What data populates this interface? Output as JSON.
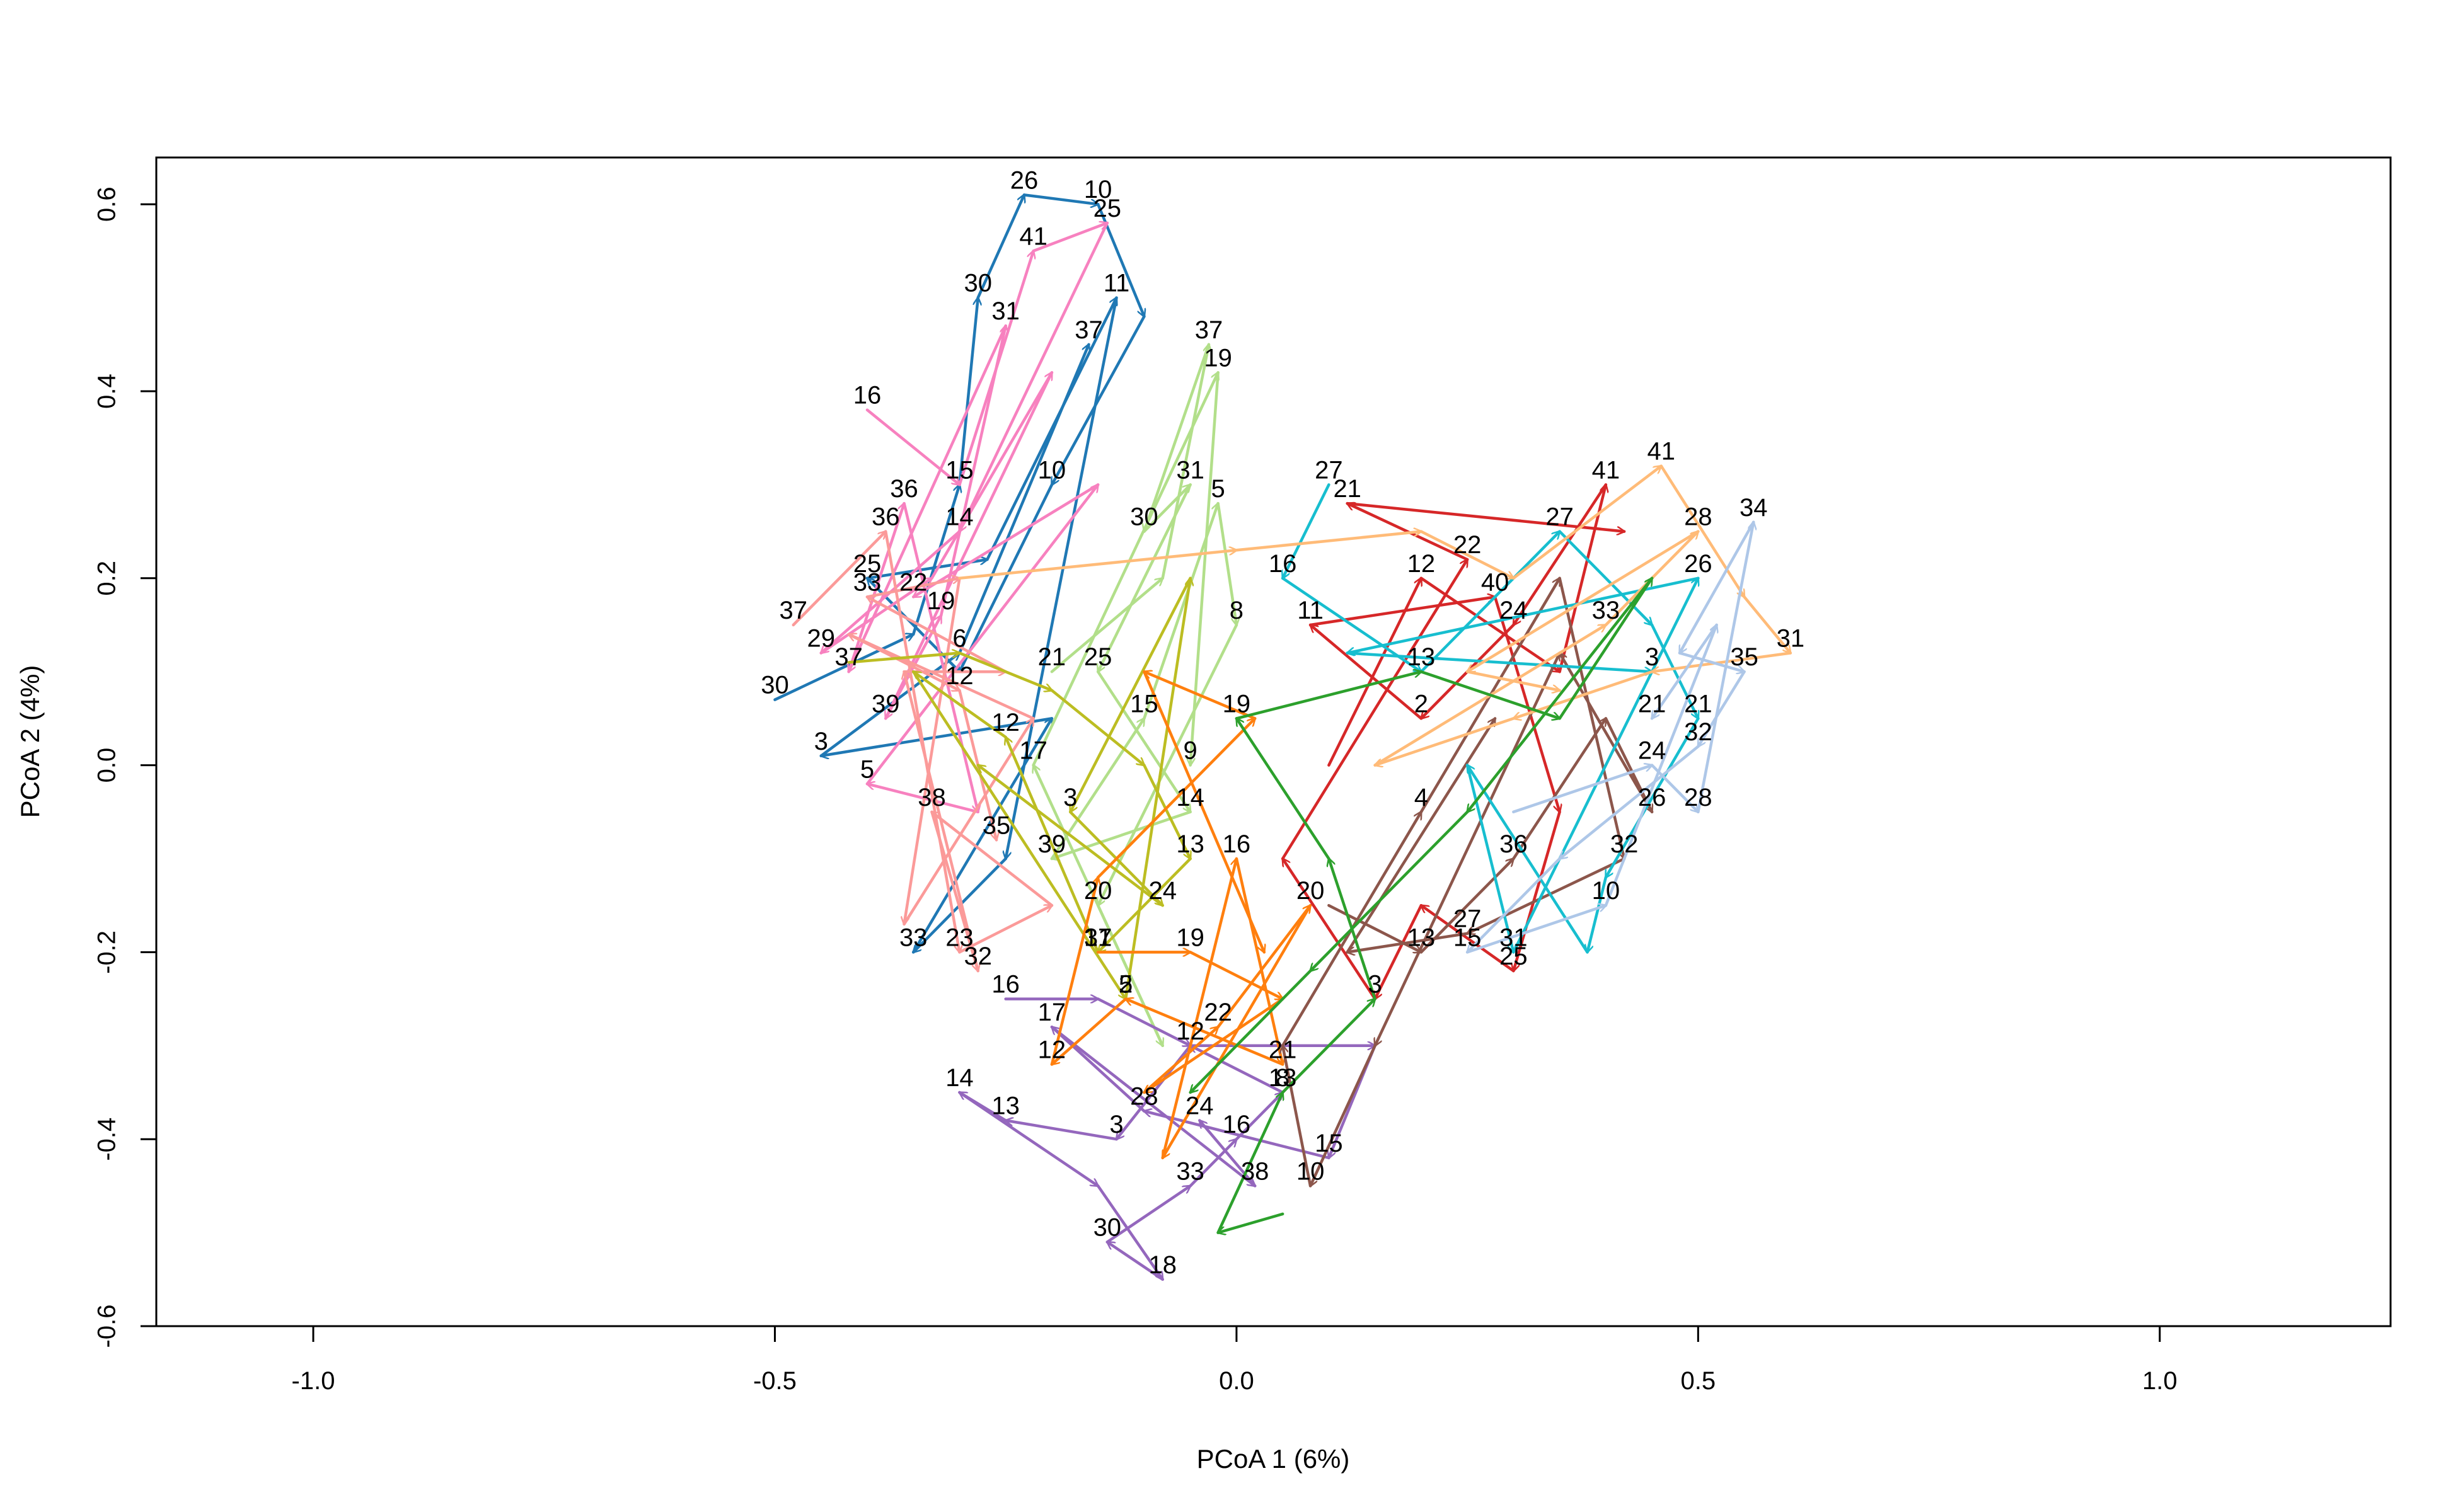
{
  "chart_data": {
    "type": "line",
    "xlabel": "PCoA 1 (6%)",
    "ylabel": "PCoA 2 (4%)",
    "xlim": [
      -1.17,
      1.25
    ],
    "ylim": [
      -0.6,
      0.65
    ],
    "xticks": [
      -1.0,
      -0.5,
      0.0,
      0.5,
      1.0
    ],
    "xtick_labels": [
      "-1.0",
      "-0.5",
      "0.0",
      "0.5",
      "1.0"
    ],
    "yticks": [
      -0.6,
      -0.4,
      -0.2,
      0.0,
      0.2,
      0.4,
      0.6
    ],
    "ytick_labels": [
      "-0.6",
      "-0.4",
      "-0.2",
      "0.0",
      "0.2",
      "0.4",
      "0.6"
    ],
    "grid": false,
    "legend": "none",
    "arrows": true,
    "series": [
      {
        "color": "#1f78b4",
        "points": [
          [
            -0.5,
            0.07,
            "30"
          ],
          [
            -0.35,
            0.14,
            ""
          ],
          [
            -0.3,
            0.3,
            ""
          ],
          [
            -0.28,
            0.5,
            "30"
          ],
          [
            -0.23,
            0.61,
            "26"
          ],
          [
            -0.15,
            0.6,
            "10"
          ],
          [
            -0.1,
            0.48,
            ""
          ],
          [
            -0.2,
            0.3,
            "10"
          ],
          [
            -0.3,
            0.1,
            ""
          ],
          [
            -0.4,
            0.2,
            "25"
          ],
          [
            -0.27,
            0.22,
            ""
          ],
          [
            -0.13,
            0.5,
            "11"
          ],
          [
            -0.25,
            -0.1,
            ""
          ],
          [
            -0.35,
            -0.2,
            "33"
          ],
          [
            -0.2,
            0.05,
            ""
          ],
          [
            -0.45,
            0.01,
            "3"
          ],
          [
            -0.3,
            0.12,
            ""
          ],
          [
            -0.16,
            0.45,
            "37"
          ]
        ]
      },
      {
        "color": "#f781bf",
        "points": [
          [
            -0.4,
            0.38,
            "16"
          ],
          [
            -0.3,
            0.3,
            "15"
          ],
          [
            -0.22,
            0.55,
            "41"
          ],
          [
            -0.14,
            0.58,
            "25"
          ],
          [
            -0.3,
            0.25,
            "14"
          ],
          [
            -0.45,
            0.12,
            "29"
          ],
          [
            -0.33,
            0.2,
            ""
          ],
          [
            -0.2,
            0.42,
            ""
          ],
          [
            -0.38,
            0.05,
            "39"
          ],
          [
            -0.32,
            0.16,
            "19"
          ],
          [
            -0.25,
            0.47,
            "31"
          ],
          [
            -0.42,
            0.1,
            "37"
          ],
          [
            -0.36,
            0.28,
            "36"
          ],
          [
            -0.28,
            -0.05,
            ""
          ],
          [
            -0.4,
            -0.02,
            "5"
          ],
          [
            -0.15,
            0.3,
            ""
          ],
          [
            -0.35,
            0.18,
            "22"
          ]
        ]
      },
      {
        "color": "#fb9a99",
        "points": [
          [
            -0.48,
            0.15,
            "37"
          ],
          [
            -0.38,
            0.25,
            "36"
          ],
          [
            -0.3,
            -0.2,
            "23"
          ],
          [
            -0.2,
            -0.15,
            ""
          ],
          [
            -0.33,
            -0.05,
            "38"
          ],
          [
            -0.28,
            -0.22,
            "32"
          ],
          [
            -0.36,
            0.1,
            ""
          ],
          [
            -0.25,
            0.1,
            ""
          ],
          [
            -0.4,
            0.18,
            "33"
          ],
          [
            -0.3,
            0.2,
            ""
          ],
          [
            -0.36,
            -0.17,
            ""
          ],
          [
            -0.22,
            0.05,
            ""
          ],
          [
            -0.42,
            0.14,
            ""
          ],
          [
            -0.3,
            0.08,
            "12"
          ],
          [
            -0.26,
            -0.08,
            "35"
          ]
        ]
      },
      {
        "color": "#b2df8a",
        "points": [
          [
            -0.2,
            0.1,
            "21"
          ],
          [
            -0.08,
            0.2,
            ""
          ],
          [
            -0.03,
            0.45,
            "37"
          ],
          [
            -0.1,
            0.25,
            "30"
          ],
          [
            -0.05,
            0.3,
            "31"
          ],
          [
            -0.15,
            0.1,
            "25"
          ],
          [
            -0.05,
            -0.05,
            "14"
          ],
          [
            -0.2,
            -0.1,
            "39"
          ],
          [
            -0.1,
            0.05,
            "15"
          ],
          [
            -0.02,
            0.28,
            "5"
          ],
          [
            0.0,
            0.15,
            "8"
          ],
          [
            -0.15,
            -0.15,
            "20"
          ],
          [
            -0.08,
            -0.3,
            ""
          ],
          [
            -0.22,
            0.0,
            "17"
          ],
          [
            -0.02,
            0.42,
            "19"
          ],
          [
            -0.05,
            0.0,
            "9"
          ]
        ]
      },
      {
        "color": "#bcbd22",
        "points": [
          [
            -0.42,
            0.11,
            ""
          ],
          [
            -0.3,
            0.12,
            "6"
          ],
          [
            -0.2,
            0.08,
            ""
          ],
          [
            -0.1,
            0.0,
            ""
          ],
          [
            -0.05,
            -0.1,
            "13"
          ],
          [
            -0.15,
            -0.2,
            "31"
          ],
          [
            -0.25,
            0.03,
            "12"
          ],
          [
            -0.35,
            0.1,
            ""
          ],
          [
            -0.12,
            -0.25,
            "2"
          ],
          [
            -0.05,
            0.2,
            ""
          ],
          [
            -0.18,
            -0.05,
            "3"
          ],
          [
            -0.08,
            -0.15,
            "24"
          ],
          [
            -0.28,
            0.0,
            ""
          ]
        ]
      },
      {
        "color": "#9467bd",
        "points": [
          [
            -0.25,
            -0.25,
            "16"
          ],
          [
            -0.15,
            -0.25,
            ""
          ],
          [
            -0.05,
            -0.3,
            ""
          ],
          [
            -0.13,
            -0.4,
            "3"
          ],
          [
            -0.25,
            -0.38,
            "13"
          ],
          [
            -0.3,
            -0.35,
            "14"
          ],
          [
            -0.15,
            -0.45,
            ""
          ],
          [
            -0.08,
            -0.55,
            "18"
          ],
          [
            -0.14,
            -0.51,
            "30"
          ],
          [
            -0.05,
            -0.45,
            "33"
          ],
          [
            0.0,
            -0.4,
            "16"
          ],
          [
            0.05,
            -0.35,
            "13"
          ],
          [
            -0.05,
            -0.3,
            "12"
          ],
          [
            0.15,
            -0.3,
            ""
          ],
          [
            0.1,
            -0.42,
            "15"
          ],
          [
            -0.1,
            -0.37,
            "28"
          ],
          [
            -0.2,
            -0.28,
            "17"
          ],
          [
            0.02,
            -0.45,
            "38"
          ],
          [
            -0.04,
            -0.38,
            "24"
          ]
        ]
      },
      {
        "color": "#ff7f0e",
        "points": [
          [
            -0.15,
            -0.2,
            "17"
          ],
          [
            -0.05,
            -0.2,
            "19"
          ],
          [
            0.05,
            -0.25,
            ""
          ],
          [
            -0.1,
            -0.35,
            ""
          ],
          [
            -0.02,
            -0.28,
            "22"
          ],
          [
            0.08,
            -0.15,
            "20"
          ],
          [
            -0.08,
            -0.42,
            ""
          ],
          [
            0.0,
            -0.1,
            "16"
          ],
          [
            0.05,
            -0.32,
            "21"
          ],
          [
            -0.12,
            -0.25,
            "5"
          ],
          [
            -0.2,
            -0.32,
            "12"
          ],
          [
            -0.15,
            -0.12,
            ""
          ],
          [
            0.02,
            0.05,
            ""
          ],
          [
            -0.1,
            0.1,
            ""
          ],
          [
            0.03,
            -0.2,
            ""
          ]
        ]
      },
      {
        "color": "#d62728",
        "points": [
          [
            0.1,
            0.0,
            ""
          ],
          [
            0.2,
            0.2,
            "12"
          ],
          [
            0.35,
            0.1,
            ""
          ],
          [
            0.4,
            0.3,
            "41"
          ],
          [
            0.3,
            0.15,
            "24"
          ],
          [
            0.2,
            0.05,
            "2"
          ],
          [
            0.08,
            0.15,
            "11"
          ],
          [
            0.28,
            0.18,
            "40"
          ],
          [
            0.35,
            -0.05,
            ""
          ],
          [
            0.3,
            -0.22,
            "25"
          ],
          [
            0.2,
            -0.15,
            ""
          ],
          [
            0.15,
            -0.25,
            "3"
          ],
          [
            0.05,
            -0.1,
            ""
          ],
          [
            0.25,
            0.22,
            "22"
          ],
          [
            0.12,
            0.28,
            "21"
          ],
          [
            0.42,
            0.25,
            ""
          ]
        ]
      },
      {
        "color": "#8c564b",
        "points": [
          [
            0.1,
            -0.15,
            ""
          ],
          [
            0.2,
            -0.2,
            "13"
          ],
          [
            0.3,
            -0.1,
            "36"
          ],
          [
            0.4,
            0.05,
            ""
          ],
          [
            0.45,
            -0.05,
            "26"
          ],
          [
            0.35,
            0.12,
            ""
          ],
          [
            0.15,
            -0.3,
            ""
          ],
          [
            0.08,
            -0.45,
            "10"
          ],
          [
            0.05,
            -0.3,
            ""
          ],
          [
            0.2,
            -0.05,
            "4"
          ],
          [
            0.35,
            0.2,
            ""
          ],
          [
            0.42,
            -0.1,
            "32"
          ],
          [
            0.25,
            -0.18,
            "27"
          ],
          [
            0.12,
            -0.2,
            ""
          ],
          [
            0.28,
            0.05,
            ""
          ]
        ]
      },
      {
        "color": "#17becf",
        "points": [
          [
            0.1,
            0.3,
            "27"
          ],
          [
            0.05,
            0.2,
            "16"
          ],
          [
            0.2,
            0.1,
            "13"
          ],
          [
            0.35,
            0.25,
            "27"
          ],
          [
            0.45,
            0.15,
            ""
          ],
          [
            0.5,
            0.05,
            "21"
          ],
          [
            0.4,
            -0.12,
            ""
          ],
          [
            0.38,
            -0.2,
            ""
          ],
          [
            0.25,
            0.0,
            ""
          ],
          [
            0.3,
            -0.2,
            "31"
          ],
          [
            0.5,
            0.2,
            "26"
          ],
          [
            0.12,
            0.12,
            ""
          ],
          [
            0.45,
            0.1,
            "3"
          ]
        ]
      },
      {
        "color": "#ffbb78",
        "points": [
          [
            -0.3,
            0.2,
            ""
          ],
          [
            0.0,
            0.23,
            ""
          ],
          [
            0.2,
            0.25,
            ""
          ],
          [
            0.3,
            0.2,
            ""
          ],
          [
            0.46,
            0.32,
            "41"
          ],
          [
            0.55,
            0.18,
            ""
          ],
          [
            0.6,
            0.12,
            "31"
          ],
          [
            0.45,
            0.1,
            ""
          ],
          [
            0.3,
            0.05,
            ""
          ],
          [
            0.15,
            0.0,
            ""
          ],
          [
            0.4,
            0.15,
            "33"
          ],
          [
            0.5,
            0.25,
            "28"
          ],
          [
            0.25,
            0.1,
            ""
          ],
          [
            0.35,
            0.08,
            ""
          ]
        ]
      },
      {
        "color": "#aec7e8",
        "points": [
          [
            0.3,
            -0.05,
            ""
          ],
          [
            0.45,
            0.0,
            "24"
          ],
          [
            0.5,
            -0.05,
            "28"
          ],
          [
            0.56,
            0.26,
            "34"
          ],
          [
            0.48,
            0.12,
            ""
          ],
          [
            0.55,
            0.1,
            "35"
          ],
          [
            0.5,
            0.02,
            "32"
          ],
          [
            0.35,
            -0.1,
            ""
          ],
          [
            0.25,
            -0.2,
            "15"
          ],
          [
            0.4,
            -0.15,
            "10"
          ],
          [
            0.52,
            0.15,
            ""
          ],
          [
            0.45,
            0.05,
            "21"
          ]
        ]
      },
      {
        "color": "#2ca02c",
        "points": [
          [
            0.05,
            -0.48,
            ""
          ],
          [
            -0.02,
            -0.5,
            ""
          ],
          [
            0.05,
            -0.35,
            "8"
          ],
          [
            0.15,
            -0.25,
            ""
          ],
          [
            0.1,
            -0.1,
            ""
          ],
          [
            0.0,
            0.05,
            "19"
          ],
          [
            0.2,
            0.1,
            ""
          ],
          [
            0.35,
            0.05,
            ""
          ],
          [
            0.45,
            0.2,
            ""
          ],
          [
            0.25,
            -0.05,
            ""
          ],
          [
            0.08,
            -0.22,
            ""
          ],
          [
            -0.05,
            -0.35,
            ""
          ]
        ]
      }
    ]
  }
}
